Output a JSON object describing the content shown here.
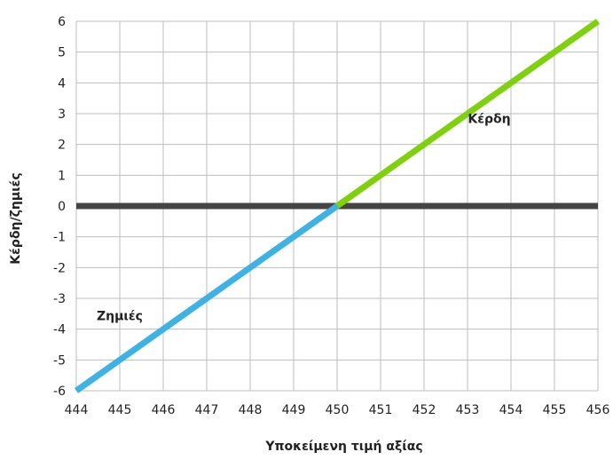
{
  "chart_data": {
    "type": "line",
    "title": "",
    "xlabel": "Υποκείμενη τιμή αξίας",
    "ylabel": "Κέρδη/ζημιές",
    "xlim": [
      444,
      456
    ],
    "ylim": [
      -6,
      6
    ],
    "grid": true,
    "x_ticks": [
      "444",
      "445",
      "446",
      "447",
      "448",
      "449",
      "450",
      "451",
      "452",
      "453",
      "454",
      "455",
      "456"
    ],
    "y_ticks": [
      "6",
      "5",
      "4",
      "3",
      "2",
      "1",
      "0",
      "-1",
      "-2",
      "-3",
      "-4",
      "-5",
      "-6"
    ],
    "series": [
      {
        "color": "#3db2e3",
        "x": [
          444,
          450
        ],
        "y": [
          -6,
          0
        ]
      },
      {
        "color": "#7fd10f",
        "x": [
          450,
          456
        ],
        "y": [
          0,
          6
        ]
      },
      {
        "color": "#444444",
        "x": [
          444,
          456
        ],
        "y": [
          0,
          0
        ]
      }
    ],
    "annotations": [
      {
        "text": "Κέρδη",
        "x": 453.5,
        "y": 2.7
      },
      {
        "text": "Ζημιές",
        "x": 445.0,
        "y": -3.7
      }
    ]
  }
}
